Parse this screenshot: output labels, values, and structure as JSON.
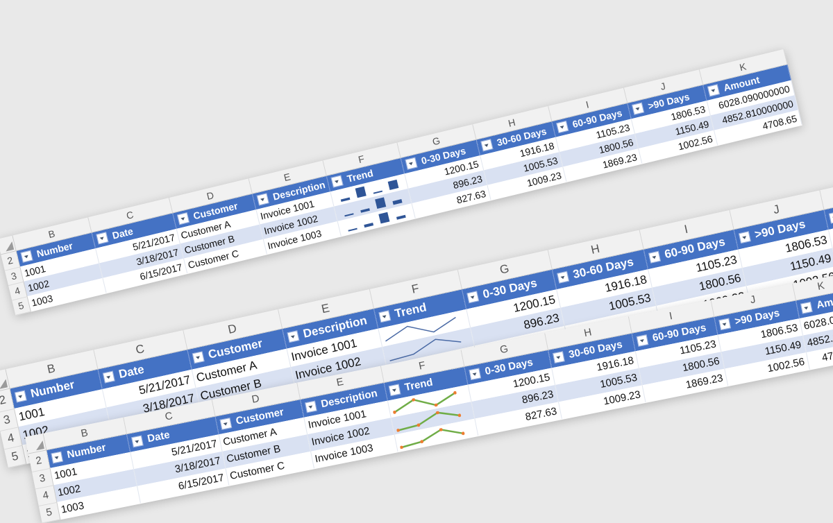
{
  "columns": [
    "B",
    "C",
    "D",
    "E",
    "F",
    "G",
    "H",
    "I",
    "J",
    "K"
  ],
  "headers": {
    "number": "Number",
    "date": "Date",
    "customer": "Customer",
    "description": "Description",
    "trend": "Trend",
    "d0_30": "0-30 Days",
    "d30_60": "30-60 Days",
    "d60_90": "60-90 Days",
    "d90": ">90 Days",
    "amount": "Amount"
  },
  "row_numbers": [
    "2",
    "3",
    "4",
    "5"
  ],
  "rows": [
    {
      "number": "1001",
      "date": "5/21/2017",
      "customer": "Customer A",
      "description": "Invoice 1001",
      "d0_30": "1200.15",
      "d30_60": "1916.18",
      "d60_90": "1105.23",
      "d90": "1806.53",
      "amount": "6028.090000000",
      "trend": [
        1200.15,
        1916.18,
        1105.23,
        1806.53
      ]
    },
    {
      "number": "1002",
      "date": "3/18/2017",
      "customer": "Customer B",
      "description": "Invoice 1002",
      "d0_30": "896.23",
      "d30_60": "1005.53",
      "d60_90": "1800.56",
      "d90": "1150.49",
      "amount": "4852.810000000",
      "trend": [
        896.23,
        1005.53,
        1800.56,
        1150.49
      ]
    },
    {
      "number": "1003",
      "date": "6/15/2017",
      "customer": "Customer C",
      "description": "Invoice 1003",
      "d0_30": "827.63",
      "d30_60": "1009.23",
      "d60_90": "1869.23",
      "d90": "1002.56",
      "amount": "4708.65",
      "trend": [
        827.63,
        1009.23,
        1869.23,
        1002.56
      ]
    }
  ],
  "sheets": [
    {
      "sparkline": "column",
      "spark_color": "#2f5597",
      "font_px": 14
    },
    {
      "sparkline": "line",
      "spark_color": "#4a6aa5",
      "font_px": 17
    },
    {
      "sparkline": "line-markers",
      "spark_color": "#70ad47",
      "marker_color": "#ed7d31",
      "font_px": 15
    }
  ]
}
